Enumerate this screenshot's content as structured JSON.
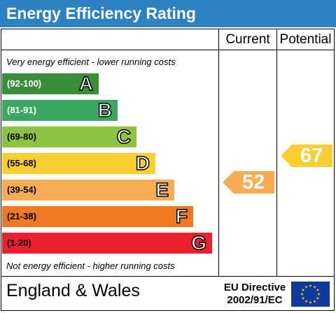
{
  "title": "Energy Efficiency Rating",
  "columns": {
    "current": "Current",
    "potential": "Potential"
  },
  "notes": {
    "top": "Very energy efficient - lower running costs",
    "bottom": "Not energy efficient - higher running costs"
  },
  "bands": [
    {
      "range": "(92-100)",
      "letter": "A",
      "color": "#3a8e3a",
      "range_color": "#ffffff"
    },
    {
      "range": "(81-91)",
      "letter": "B",
      "color": "#3ca662",
      "range_color": "#ffffff"
    },
    {
      "range": "(69-80)",
      "letter": "C",
      "color": "#8cc342",
      "range_color": "#000000"
    },
    {
      "range": "(55-68)",
      "letter": "D",
      "color": "#f9cf33",
      "range_color": "#000000"
    },
    {
      "range": "(39-54)",
      "letter": "E",
      "color": "#f6ab55",
      "range_color": "#000000"
    },
    {
      "range": "(21-38)",
      "letter": "F",
      "color": "#ee7922",
      "range_color": "#000000"
    },
    {
      "range": "(1-20)",
      "letter": "G",
      "color": "#e9202e",
      "range_color": "#000000"
    }
  ],
  "ratings": {
    "current": {
      "value": "52",
      "band": "E",
      "color": "#f6ab55"
    },
    "potential": {
      "value": "67",
      "band": "D",
      "color": "#f9cf33"
    }
  },
  "footer": {
    "region": "England & Wales",
    "directive_line1": "EU Directive",
    "directive_line2": "2002/91/EC"
  },
  "icons": {
    "flag": "eu-flag-icon"
  }
}
